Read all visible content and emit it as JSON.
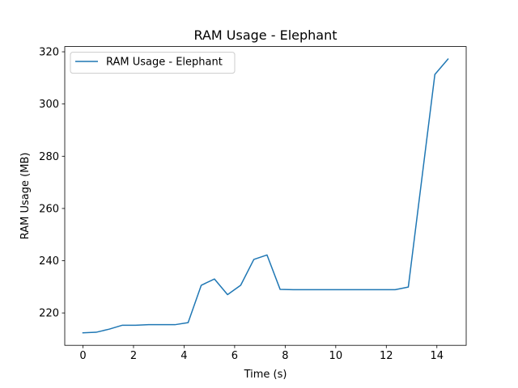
{
  "chart_data": {
    "type": "line",
    "title": "RAM Usage - Elephant",
    "xlabel": "Time (s)",
    "ylabel": "RAM Usage (MB)",
    "xlim": [
      -0.72,
      15.16
    ],
    "ylim": [
      207.6,
      322.0
    ],
    "xticks": [
      0,
      2,
      4,
      6,
      8,
      10,
      12,
      14
    ],
    "yticks": [
      220,
      240,
      260,
      280,
      300,
      320
    ],
    "grid": false,
    "legend_position": "top-left",
    "series": [
      {
        "name": "RAM Usage - Elephant",
        "color": "#1f77b4",
        "x": [
          0.0,
          0.52,
          1.04,
          1.56,
          2.08,
          2.6,
          3.12,
          3.64,
          4.16,
          4.68,
          5.2,
          5.72,
          6.24,
          6.76,
          7.28,
          7.8,
          8.32,
          8.84,
          9.36,
          9.88,
          10.4,
          10.92,
          11.44,
          11.96,
          12.35,
          12.87,
          13.92,
          14.44
        ],
        "y": [
          212.4,
          212.6,
          213.8,
          215.3,
          215.3,
          215.5,
          215.5,
          215.5,
          216.3,
          230.6,
          233.0,
          227.0,
          230.6,
          240.5,
          242.2,
          229.0,
          228.9,
          228.9,
          228.9,
          228.9,
          228.9,
          228.9,
          228.9,
          228.9,
          228.9,
          229.9,
          311.3,
          317.2
        ]
      }
    ]
  }
}
